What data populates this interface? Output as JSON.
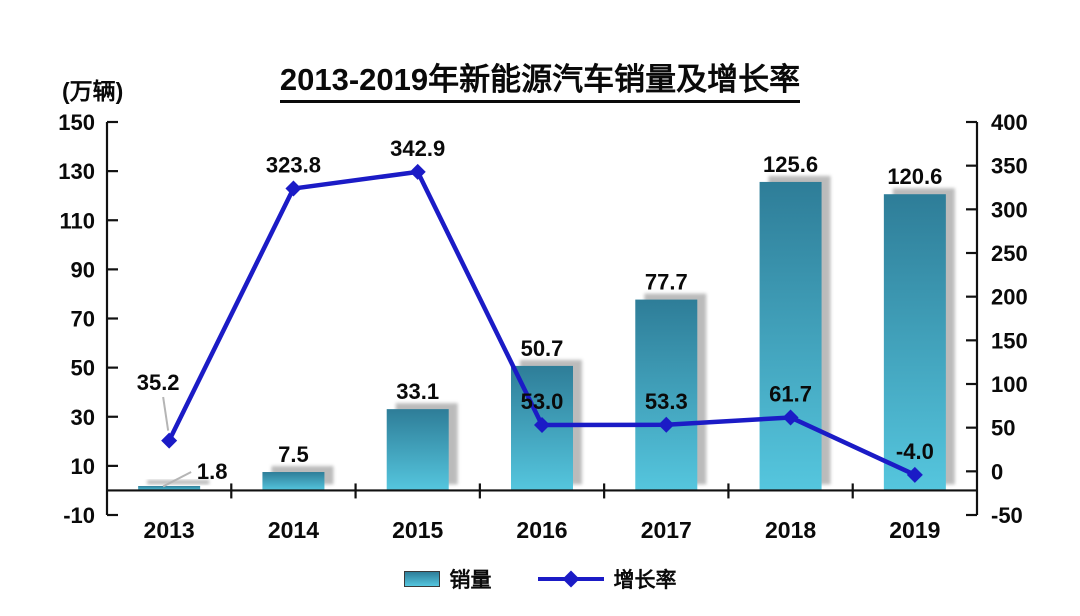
{
  "title": "2013-2019年新能源汽车销量及增长率",
  "left_axis_unit": "(万辆)",
  "legend": {
    "sales_label": "销量",
    "growth_label": "增长率"
  },
  "colors": {
    "bar_top": "#2E7D98",
    "bar_bottom": "#55C6DE",
    "line": "#1B1BC6",
    "shadow": "#ABABAB",
    "leader": "#B5B5B5",
    "text": "#0A0A0A"
  },
  "chart_data": {
    "type": "bar+line combo",
    "title": "2013-2019年新能源汽车销量及增长率",
    "categories": [
      "2013",
      "2014",
      "2015",
      "2016",
      "2017",
      "2018",
      "2019"
    ],
    "series": [
      {
        "name": "销量",
        "type": "bar",
        "axis": "left",
        "unit": "万辆",
        "values": [
          1.8,
          7.5,
          33.1,
          50.7,
          77.7,
          125.6,
          120.6
        ]
      },
      {
        "name": "增长率",
        "type": "line",
        "axis": "right",
        "unit": "%",
        "values": [
          35.2,
          323.8,
          342.9,
          53.0,
          53.3,
          61.7,
          -4.0
        ]
      }
    ],
    "left_axis": {
      "min": -10,
      "max": 150,
      "step": 20,
      "ticks": [
        150,
        130,
        110,
        90,
        70,
        50,
        30,
        10,
        -10
      ],
      "unit": "(万辆)"
    },
    "right_axis": {
      "min": -50,
      "max": 400,
      "step": 50,
      "ticks": [
        400,
        350,
        300,
        250,
        200,
        150,
        100,
        50,
        0,
        -50
      ]
    },
    "grid": false,
    "legend_position": "bottom"
  }
}
